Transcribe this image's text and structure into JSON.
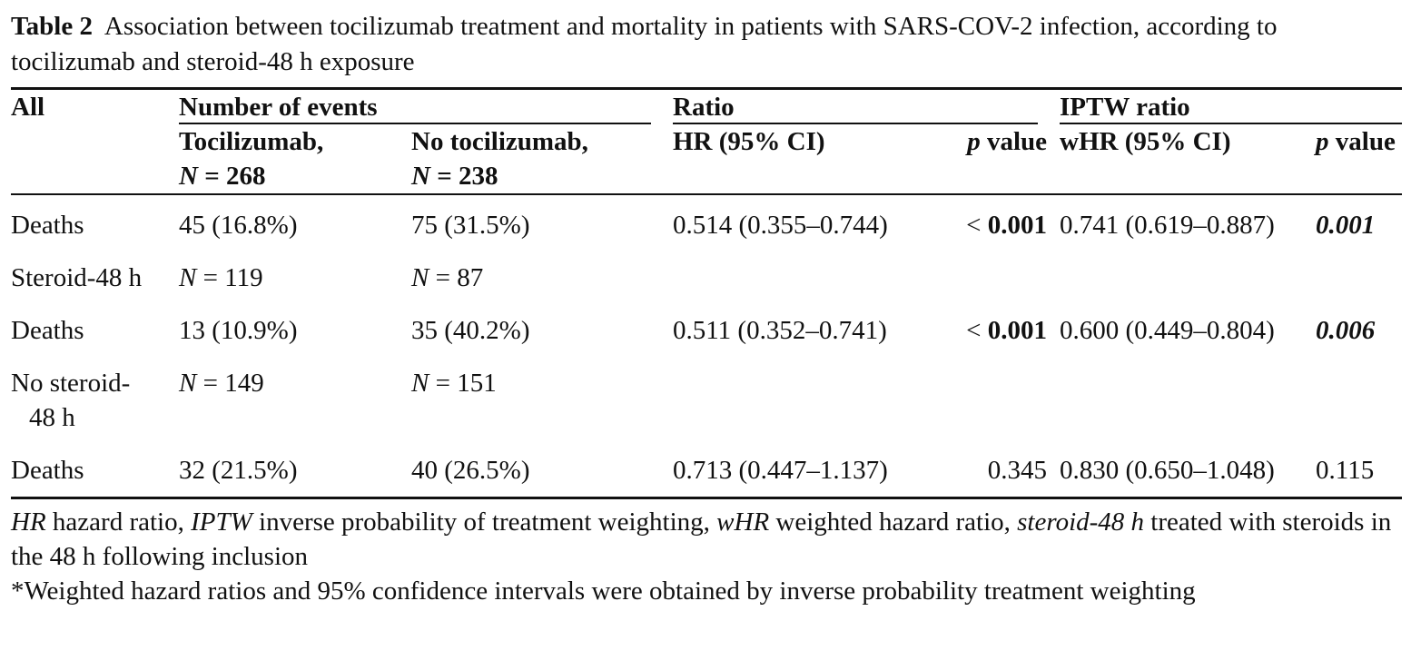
{
  "caption": {
    "label": "Table 2",
    "text": "Association between tocilizumab treatment and mortality in patients with SARS-COV-2 infection, according to tocilizumab and steroid-48 h exposure"
  },
  "table": {
    "col_all": "All",
    "group_events": "Number of events",
    "group_ratio": "Ratio",
    "group_iptw": "IPTW ratio",
    "sub_toci_line1": "Tocilizumab,",
    "sub_toci_line2_n": "N",
    "sub_toci_line2_val": " = 268",
    "sub_notoci_line1": "No tocilizumab,",
    "sub_notoci_line2_n": "N",
    "sub_notoci_line2_val": " = 238",
    "sub_hr": "HR (95% CI)",
    "sub_p_italic": "p",
    "sub_p_rest": " value",
    "sub_whr": "wHR (95% CI)",
    "sub_wp_italic": "p",
    "sub_wp_rest": " value",
    "rows": [
      {
        "label": "Deaths",
        "toci": "45 (16.8%)",
        "notoci": "75 (31.5%)",
        "hr": "0.514 (0.355–0.744)",
        "p_prefix": "< ",
        "p_bold": "0.001",
        "whr": "0.741 (0.619–0.887)",
        "wp": "0.001"
      },
      {
        "label": "Steroid-48 h",
        "toci_n": "N",
        "toci_val": " = 119",
        "notoci_n": "N",
        "notoci_val": " = 87"
      },
      {
        "label": "Deaths",
        "toci": "13 (10.9%)",
        "notoci": "35 (40.2%)",
        "hr": "0.511 (0.352–0.741)",
        "p_prefix": "< ",
        "p_bold": "0.001",
        "whr": "0.600 (0.449–0.804)",
        "wp": "0.006"
      },
      {
        "label_line1": "No steroid-",
        "label_line2": "48 h",
        "toci_n": "N",
        "toci_val": " = 149",
        "notoci_n": "N",
        "notoci_val": " = 151"
      },
      {
        "label": "Deaths",
        "toci": "32 (21.5%)",
        "notoci": "40 (26.5%)",
        "hr": "0.713 (0.447–1.137)",
        "p": "0.345",
        "whr": "0.830 (0.650–1.048)",
        "wp": "0.115"
      }
    ]
  },
  "footnotes": {
    "line1_hr": "HR",
    "line1_hr_text": " hazard ratio, ",
    "line1_iptw": "IPTW",
    "line1_iptw_text": " inverse probability of treatment weighting, ",
    "line1_whr": "wHR",
    "line1_whr_text": " weighted hazard ratio, ",
    "line1_steroid": "steroid-48 h",
    "line1_steroid_text": " treated with steroids in the 48 h following inclusion",
    "line2": "*Weighted hazard ratios and 95% confidence intervals were obtained by inverse probability treatment weighting"
  }
}
